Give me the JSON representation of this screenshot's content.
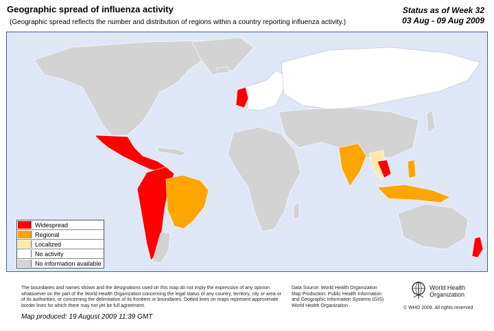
{
  "header": {
    "title": "Geographic spread of influenza activity",
    "subtitle": "(Geographic spread reflects the number and distribution of regions within a country reporting influenza activity.)",
    "status_line1": "Status as of Week 32",
    "status_line2": "03 Aug - 09 Aug 2009"
  },
  "colors": {
    "ocean": "#dfe7f7",
    "widespread": "#ff0000",
    "regional": "#ffa500",
    "localized": "#ffe8a8",
    "no_activity": "#ffffff",
    "no_info": "#d3d3d3"
  },
  "legend": {
    "items": [
      {
        "label": "Widespread",
        "color": "#ff0000"
      },
      {
        "label": "Regional",
        "color": "#ffa500"
      },
      {
        "label": "Localized",
        "color": "#ffe8a8"
      },
      {
        "label": "No activity",
        "color": "#ffffff"
      },
      {
        "label": "No information available",
        "color": "#d3d3d3"
      }
    ]
  },
  "footer": {
    "disclaimer": "The boundaries and names shown and the designations used on this map do not imply the expression of any opinion whatsoever on the part of the World Health Organization concerning the legal status of any country, territory, city or area or of its authorities, or concerning the delimitation of its frontiers or boundaries. Dotted lines on maps represent approximate border lines for which there may not yet be full agreement.",
    "produced": "Map produced: 19 August 2009 11:39 GMT",
    "source_line1": "Data Source: World Health Organization",
    "source_line2": "Map Production: Public Health Information",
    "source_line3": "and Geographic Information Systems (GIS)",
    "source_line4": "World Health Organization",
    "org_line1": "World Health",
    "org_line2": "Organization",
    "copyright": "© WHO 2009. All rights reserved"
  }
}
